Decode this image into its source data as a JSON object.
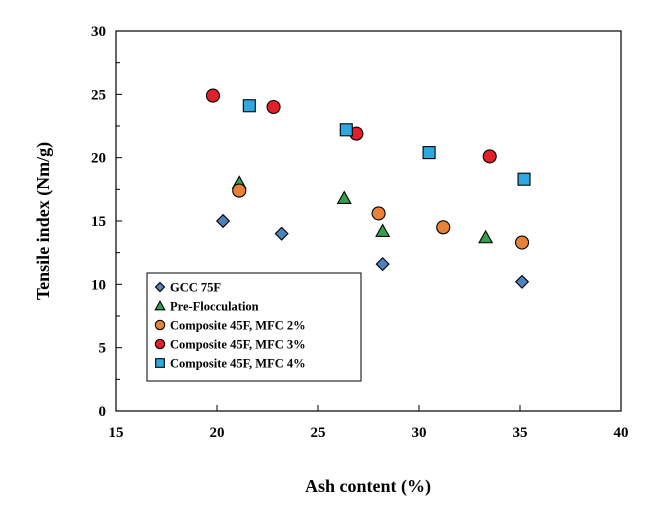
{
  "chart_data": {
    "type": "scatter",
    "title": "",
    "xlabel": "Ash content (%)",
    "ylabel": "Tensile index (Nm/g)",
    "xlim": [
      15,
      40
    ],
    "ylim": [
      0,
      30
    ],
    "x_ticks": [
      "15",
      "20",
      "25",
      "30",
      "35",
      "40"
    ],
    "y_ticks": [
      "0",
      "5",
      "10",
      "15",
      "20",
      "25",
      "30"
    ],
    "grid": false,
    "legend_position": "bottom-left",
    "series": [
      {
        "name": "GCC 75F",
        "marker": "diamond",
        "color": "#4f81bd",
        "points": [
          [
            20.3,
            15.0
          ],
          [
            23.2,
            14.0
          ],
          [
            28.2,
            11.6
          ],
          [
            35.1,
            10.2
          ]
        ]
      },
      {
        "name": "Pre-Flocculation",
        "marker": "triangle",
        "color": "#33a04d",
        "points": [
          [
            21.1,
            18.0
          ],
          [
            26.3,
            16.8
          ],
          [
            28.2,
            14.2
          ],
          [
            33.3,
            13.7
          ]
        ]
      },
      {
        "name": "Composite 45F, MFC 2%",
        "marker": "circle",
        "color": "#e8823a",
        "points": [
          [
            21.1,
            17.4
          ],
          [
            28.0,
            15.6
          ],
          [
            31.2,
            14.5
          ],
          [
            35.1,
            13.3
          ]
        ]
      },
      {
        "name": "Composite 45F, MFC 3%",
        "marker": "circle",
        "color": "#e0202a",
        "points": [
          [
            19.8,
            24.9
          ],
          [
            22.8,
            24.0
          ],
          [
            26.9,
            21.9
          ],
          [
            33.5,
            20.1
          ]
        ]
      },
      {
        "name": "Composite 45F, MFC 4%",
        "marker": "square",
        "color": "#2ea8e0",
        "points": [
          [
            21.6,
            24.1
          ],
          [
            26.4,
            22.2
          ],
          [
            30.5,
            20.4
          ],
          [
            35.2,
            18.3
          ]
        ]
      }
    ]
  }
}
